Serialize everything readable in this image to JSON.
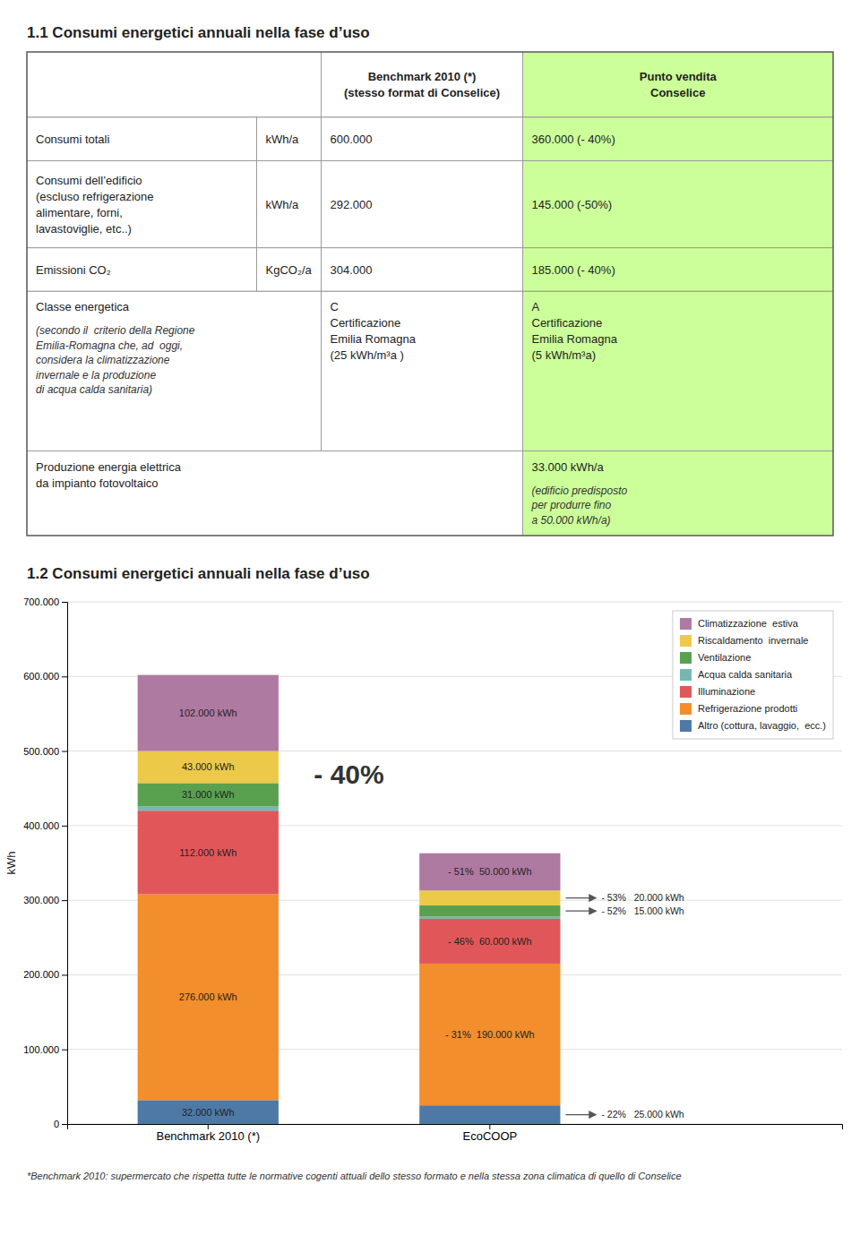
{
  "chart_data": [
    {
      "type": "table",
      "title": "1.1 Consumi energetici annuali nella fase d’uso",
      "color": "#CCFF99",
      "header": [
        null,
        null,
        "Benchmark 2010 (*)\n(stesso format di Conselice)",
        "Punto vendita\nConselice"
      ],
      "rows": [
        [
          "Consumi totali",
          "kWh/a",
          "600.000",
          "360.000 (- 40%)"
        ],
        [
          "Consumi dell’edificio\n(escluso refrigerazione\nalimentare, forni,\nlavastoviglie, etc..)",
          "kWh/a",
          "292.000",
          "145.000 (-50%)"
        ],
        [
          "Emissioni CO₂",
          "KgCO₂/a",
          "304.000",
          "185.000 (- 40%)"
        ],
        [
          {
            "text": "Classe energetica",
            "note": "(secondo il  criterio della Regione\nEmilia-Romagna che, ad  oggi,\nconsidera la climatizzazione\ninvernale e la produzione\ndi acqua calda sanitaria)"
          },
          null,
          "C\nCertificazione\nEmilia Romagna\n(25 kWh/m³a )",
          "A\nCertificazione\nEmilia Romagna\n(5 kWh/m³a)"
        ],
        [
          "Produzione energia elettrica\nda impianto fotovoltaico",
          null,
          null,
          {
            "text": "33.000 kWh/a",
            "note": "(edificio predisposto\nper produrre fino\na 50.000 kWh/a)"
          }
        ]
      ]
    },
    {
      "type": "bar",
      "title": "1.2 Consumi energetici annuali nella fase d’uso",
      "stacked": true,
      "categories": [
        "Benchmark 2010 (*)",
        "EcoCOOP"
      ],
      "series": [
        {
          "name": "Altro (cottura, lavaggio,  ecc.)",
          "values": [
            32000,
            25000
          ],
          "value_labels": [
            "32.000 kWh",
            "- 22%   25.000 kWh"
          ]
        },
        {
          "name": "Refrigerazione prodotti",
          "values": [
            276000,
            190000
          ],
          "value_labels": [
            "276.000 kWh",
            "- 31%  190.000 kWh"
          ]
        },
        {
          "name": "Illuminazione",
          "values": [
            112000,
            60000
          ],
          "value_labels": [
            "112.000 kWh",
            "- 46%  60.000 kWh"
          ]
        },
        {
          "name": "Acqua calda sanitaria",
          "values": [
            6000,
            3000
          ],
          "value_labels": [
            null,
            null
          ]
        },
        {
          "name": "Ventilazione",
          "values": [
            31000,
            15000
          ],
          "value_labels": [
            "31.000 kWh",
            "- 52%   15.000 kWh"
          ]
        },
        {
          "name": "Riscaldamento  invernale",
          "values": [
            43000,
            20000
          ],
          "value_labels": [
            "43.000 kWh",
            "- 53%   20.000 kWh"
          ]
        },
        {
          "name": "Climatizzazione  estiva",
          "values": [
            102000,
            50000
          ],
          "value_labels": [
            "102.000 kWh",
            "- 51%  50.000 kWh"
          ]
        }
      ],
      "ylabel": "kWh",
      "ylim": [
        0,
        700000
      ],
      "yticks": [
        0,
        {
          "value": 100000,
          "label": "100.000"
        },
        {
          "value": 200000,
          "label": "200.000"
        },
        {
          "value": 300000,
          "label": "300.000"
        },
        {
          "value": 400000,
          "label": "400.000"
        },
        {
          "value": 500000,
          "label": "500.000"
        },
        {
          "value": 600000,
          "label": "600.000"
        },
        {
          "value": 700000,
          "label": "700.000"
        }
      ],
      "grid": true,
      "legend": "upper right",
      "annotations": [
        {
          "text": "- 40%"
        }
      ],
      "footnote": "*Benchmark 2010: supermercato che rispetta tutte le normative cogenti attuali dello stesso formato e nella stessa zona climatica di quello di Conselice"
    }
  ]
}
